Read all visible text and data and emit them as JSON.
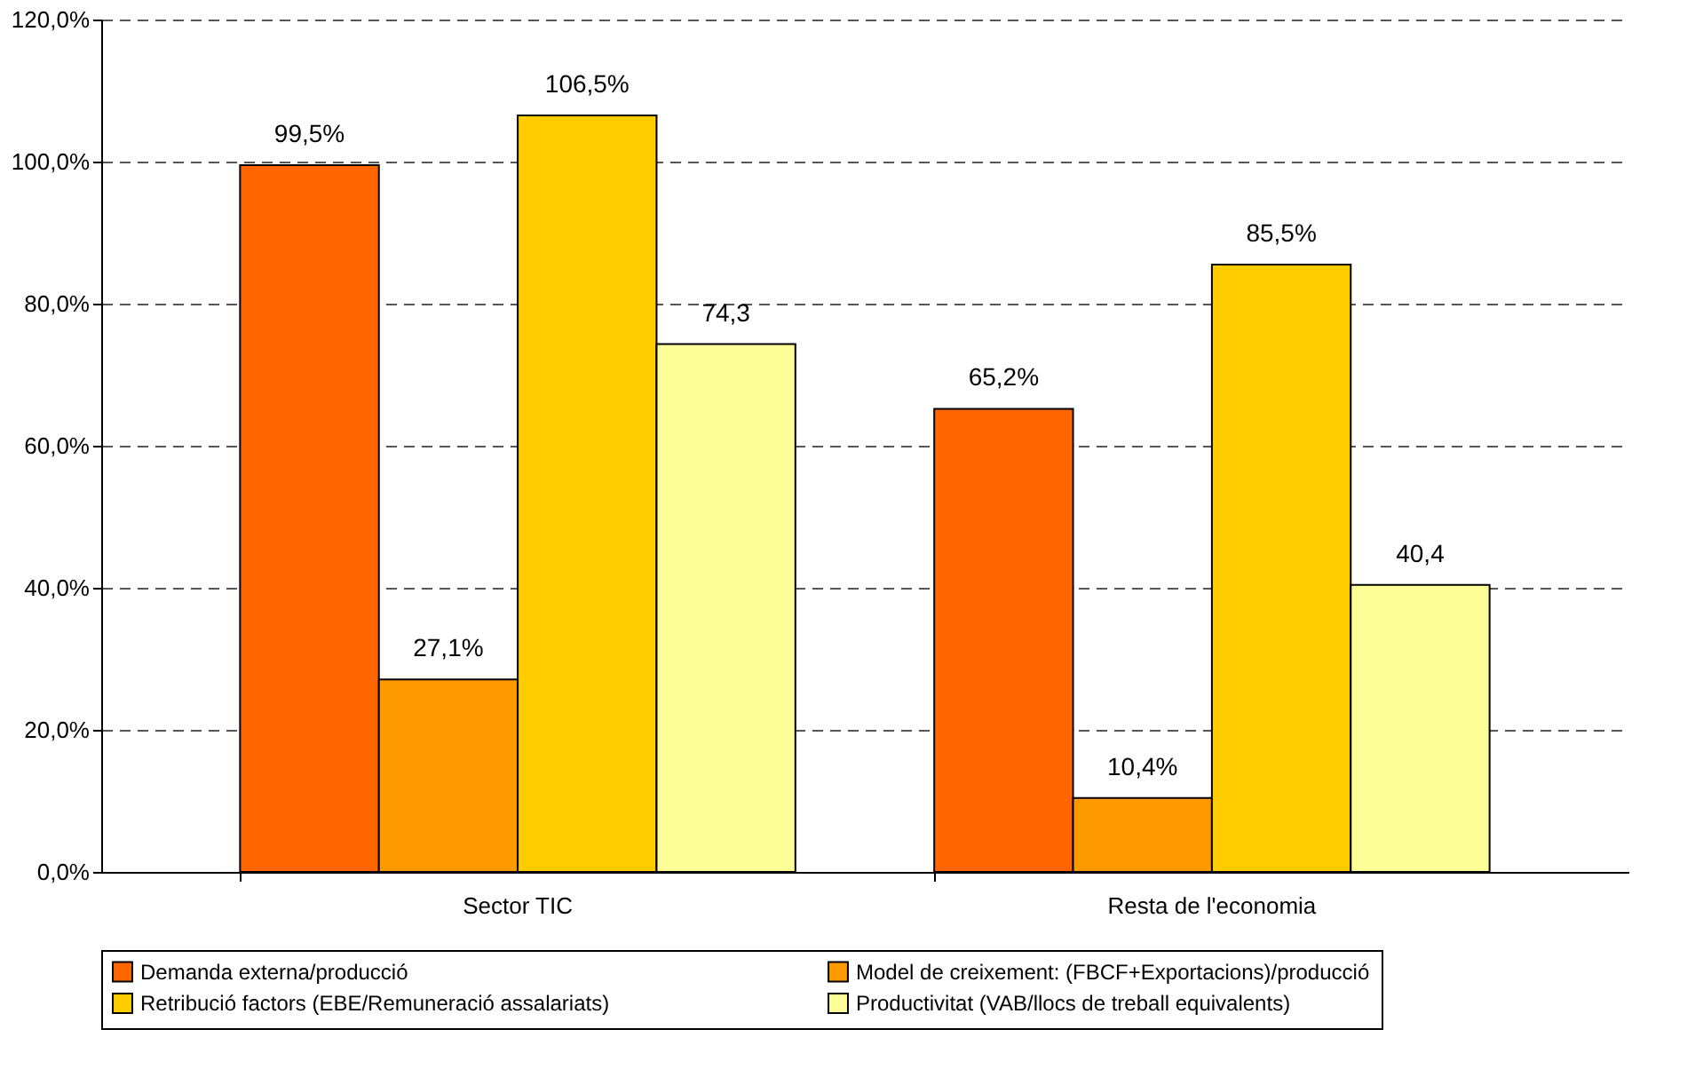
{
  "chart_data": {
    "type": "bar",
    "categories": [
      "Sector TIC",
      "Resta de l'economia"
    ],
    "series": [
      {
        "name": "Demanda externa/producció",
        "color": "#ff6600",
        "values": [
          99.5,
          65.2
        ],
        "value_labels": [
          "99,5%",
          "65,2%"
        ]
      },
      {
        "name": "Model de creixement: (FBCF+Exportacions)/producció",
        "color": "#ff9900",
        "values": [
          27.1,
          10.4
        ],
        "value_labels": [
          "27,1%",
          "10,4%"
        ]
      },
      {
        "name": "Retribució factors (EBE/Remuneració assalariats)",
        "color": "#ffcc00",
        "values": [
          106.5,
          85.5
        ],
        "value_labels": [
          "106,5%",
          "85,5%"
        ]
      },
      {
        "name": "Productivitat (VAB/llocs de treball equivalents)",
        "color": "#ffff99",
        "values": [
          74.3,
          40.4
        ],
        "value_labels": [
          "74,3",
          "40,4"
        ]
      }
    ],
    "ylim": [
      0,
      120
    ],
    "yticks": [
      {
        "value": 0,
        "label": "0,0%"
      },
      {
        "value": 20,
        "label": "20,0%"
      },
      {
        "value": 40,
        "label": "40,0%"
      },
      {
        "value": 60,
        "label": "60,0%"
      },
      {
        "value": 80,
        "label": "80,0%"
      },
      {
        "value": 100,
        "label": "100,0%"
      },
      {
        "value": 120,
        "label": "120,0%"
      }
    ],
    "grid": "y",
    "legend": "bottom"
  }
}
